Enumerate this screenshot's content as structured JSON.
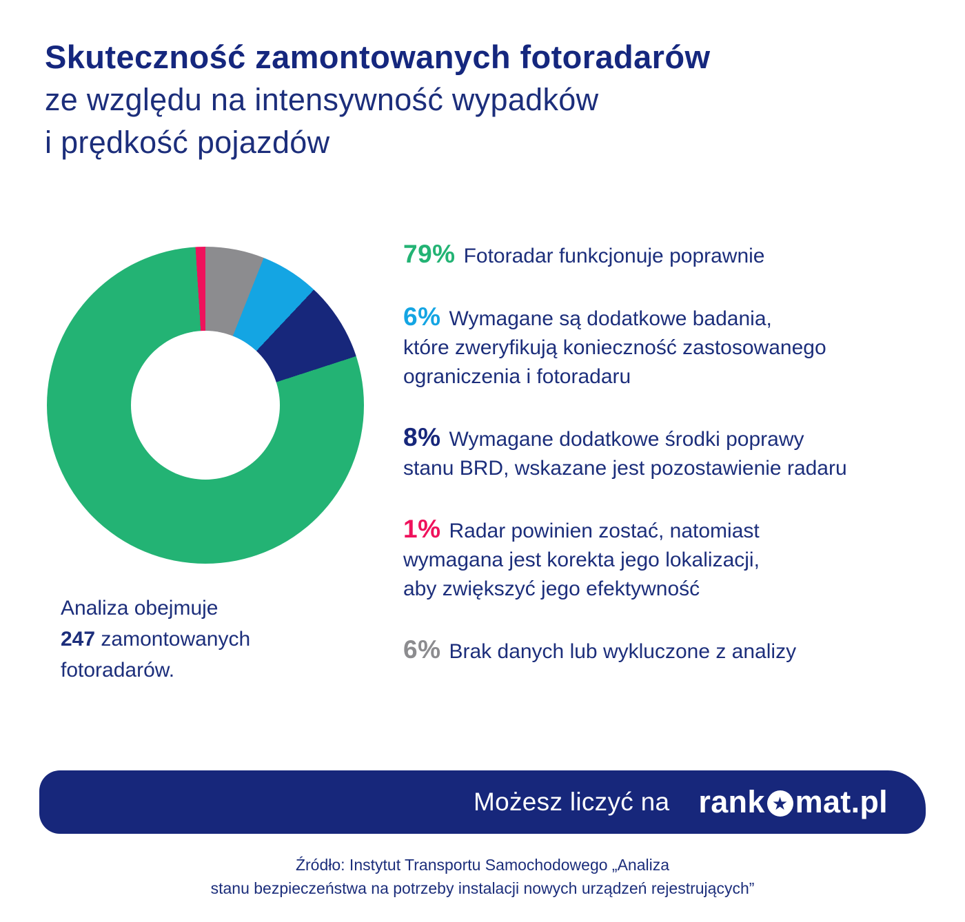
{
  "header": {
    "title1": "Skuteczność zamontowanych fotoradarów",
    "title2": "ze względu na intensywność wypadków",
    "title3": "i prędkość pojazdów"
  },
  "chart_data": {
    "type": "pie",
    "donut": true,
    "title": "Skuteczność zamontowanych fotoradarów ze względu na intensywność wypadków i prędkość pojazdów",
    "unit_note": "Analiza obejmuje 247 zamontowanych fotoradarów.",
    "total_units": 247,
    "legend_position": "right",
    "series": [
      {
        "name": "Fotoradar funkcjonuje poprawnie",
        "value": 79,
        "color": "#23b374"
      },
      {
        "name": "Wymagane są dodatkowe badania, które zweryfikują konieczność zastosowanego ograniczenia i fotoradaru",
        "value": 6,
        "color": "#14a5e3"
      },
      {
        "name": "Wymagane dodatkowe środki poprawy stanu BRD, wskazane jest pozostawienie radaru",
        "value": 8,
        "color": "#17277b"
      },
      {
        "name": "Radar powinien zostać, natomiast wymagana jest korekta jego lokalizacji, aby zwiększyć jego efektywność",
        "value": 1,
        "color": "#ef125c"
      },
      {
        "name": "Brak danych lub wykluczone z analizy",
        "value": 6,
        "color": "#8c8c8f"
      }
    ]
  },
  "legend": [
    {
      "pct": "79%",
      "text": "Fotoradar funkcjonuje poprawnie"
    },
    {
      "pct": "6%",
      "text": "Wymagane są dodatkowe badania,\nktóre zweryfikują konieczność zastosowanego\nograniczenia i fotoradaru"
    },
    {
      "pct": "8%",
      "text": "Wymagane dodatkowe środki poprawy\nstanu BRD, wskazane jest pozostawienie radaru"
    },
    {
      "pct": "1%",
      "text": "Radar powinien zostać, natomiast\nwymagana jest korekta jego lokalizacji,\naby zwiększyć jego efektywność"
    },
    {
      "pct": "6%",
      "text": "Brak danych lub wykluczone z analizy"
    }
  ],
  "note": {
    "line1": "Analiza obejmuje",
    "count": "247",
    "line2_rest": " zamontowanych",
    "line3": "fotoradarów."
  },
  "footer": {
    "slogan": "Możesz liczyć na",
    "logo_prefix": "rank",
    "logo_suffix": "mat.pl",
    "star": "★"
  },
  "source": {
    "line1_label": "Źródło:",
    "line1_text": " Instytut Transportu Samochodowego „Analiza",
    "line2": "stanu bezpieczeństwa na potrzeby instalacji nowych urządzeń rejestrujących”"
  }
}
